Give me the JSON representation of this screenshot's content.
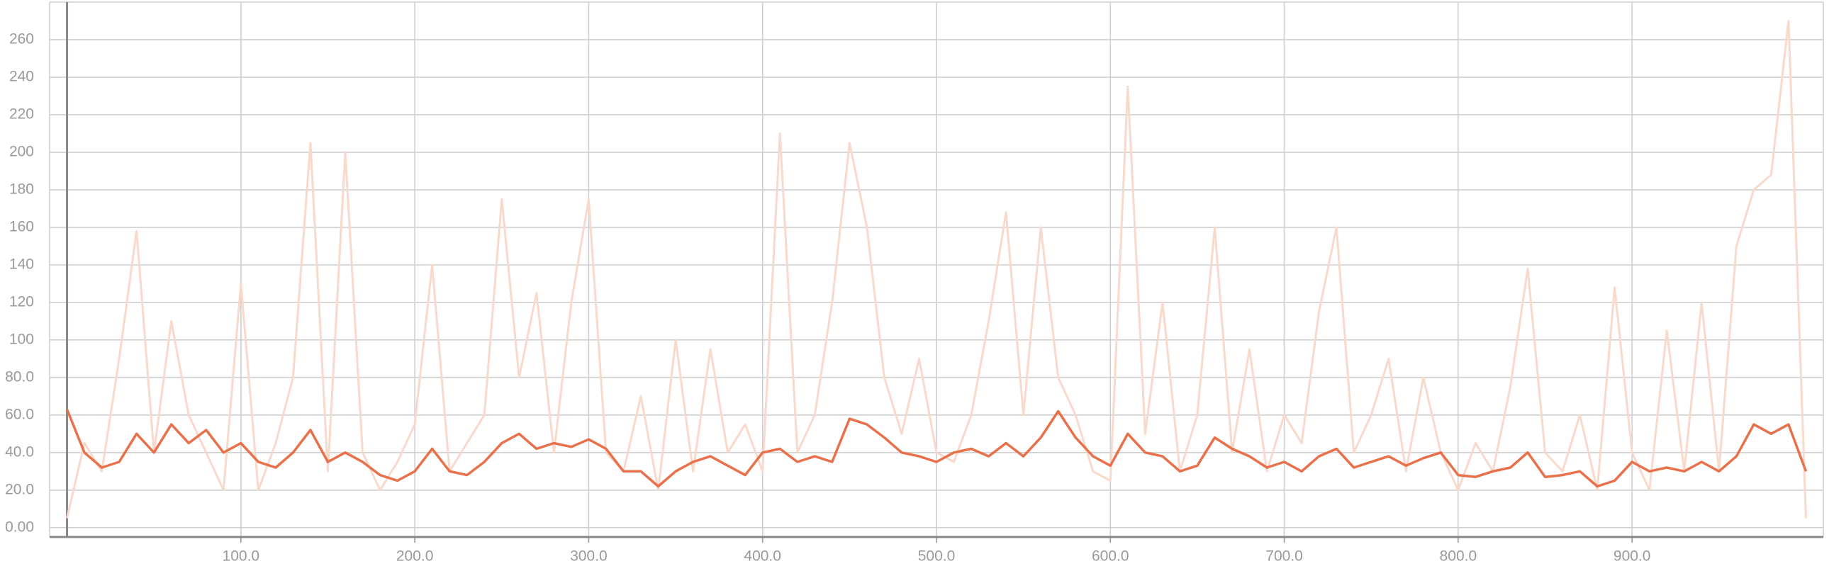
{
  "chart_data": {
    "type": "line",
    "x": [
      0,
      10,
      20,
      30,
      40,
      50,
      60,
      70,
      80,
      90,
      100,
      110,
      120,
      130,
      140,
      150,
      160,
      170,
      180,
      190,
      200,
      210,
      220,
      230,
      240,
      250,
      260,
      270,
      280,
      290,
      300,
      310,
      320,
      330,
      340,
      350,
      360,
      370,
      380,
      390,
      400,
      410,
      420,
      430,
      440,
      450,
      460,
      470,
      480,
      490,
      500,
      510,
      520,
      530,
      540,
      550,
      560,
      570,
      580,
      590,
      600,
      610,
      620,
      630,
      640,
      650,
      660,
      670,
      680,
      690,
      700,
      710,
      720,
      730,
      740,
      750,
      760,
      770,
      780,
      790,
      800,
      810,
      820,
      830,
      840,
      850,
      860,
      870,
      880,
      890,
      900,
      910,
      920,
      930,
      940,
      950,
      960,
      970,
      980,
      990,
      1000
    ],
    "series": [
      {
        "color": "#f9d9cc",
        "values": [
          5,
          45,
          30,
          90,
          158,
          40,
          110,
          60,
          40,
          20,
          130,
          20,
          45,
          80,
          205,
          30,
          200,
          40,
          20,
          35,
          55,
          140,
          30,
          45,
          60,
          175,
          80,
          125,
          40,
          120,
          175,
          40,
          30,
          70,
          20,
          100,
          30,
          95,
          40,
          55,
          30,
          210,
          40,
          60,
          120,
          205,
          160,
          80,
          50,
          90,
          40,
          35,
          60,
          110,
          168,
          60,
          160,
          80,
          60,
          30,
          25,
          235,
          50,
          120,
          30,
          60,
          160,
          40,
          95,
          30,
          60,
          45,
          115,
          160,
          40,
          60,
          90,
          30,
          80,
          40,
          20,
          45,
          30,
          75,
          138,
          40,
          30,
          60,
          20,
          128,
          40,
          20,
          105,
          30,
          120,
          30,
          150,
          180,
          188,
          270,
          5
        ]
      },
      {
        "color": "#e8704a",
        "values": [
          63,
          40,
          32,
          35,
          50,
          40,
          55,
          45,
          52,
          40,
          45,
          35,
          32,
          40,
          52,
          35,
          40,
          35,
          28,
          25,
          30,
          42,
          30,
          28,
          35,
          45,
          50,
          42,
          45,
          43,
          47,
          42,
          30,
          30,
          22,
          30,
          35,
          38,
          33,
          28,
          40,
          42,
          35,
          38,
          35,
          58,
          55,
          48,
          40,
          38,
          35,
          40,
          42,
          38,
          45,
          38,
          48,
          62,
          48,
          38,
          33,
          50,
          40,
          38,
          30,
          33,
          48,
          42,
          38,
          32,
          35,
          30,
          38,
          42,
          32,
          35,
          38,
          33,
          37,
          40,
          28,
          27,
          30,
          32,
          40,
          27,
          28,
          30,
          22,
          25,
          35,
          30,
          32,
          30,
          35,
          30,
          38,
          55,
          50,
          55,
          30
        ]
      }
    ],
    "xlim": [
      -10,
      1010
    ],
    "ylim": [
      -5,
      280
    ],
    "xticks": [
      {
        "value": 100,
        "label": "100.0"
      },
      {
        "value": 200,
        "label": "200.0"
      },
      {
        "value": 300,
        "label": "300.0"
      },
      {
        "value": 400,
        "label": "400.0"
      },
      {
        "value": 500,
        "label": "500.0"
      },
      {
        "value": 600,
        "label": "600.0"
      },
      {
        "value": 700,
        "label": "700.0"
      },
      {
        "value": 800,
        "label": "800.0"
      },
      {
        "value": 900,
        "label": "900.0"
      }
    ],
    "yticks": [
      {
        "value": 0,
        "label": "0.00"
      },
      {
        "value": 20,
        "label": "20.0"
      },
      {
        "value": 40,
        "label": "40.0"
      },
      {
        "value": 60,
        "label": "60.0"
      },
      {
        "value": 80,
        "label": "80.0"
      },
      100,
      120,
      140,
      160,
      180,
      200,
      220,
      240,
      260
    ],
    "grid": true
  }
}
